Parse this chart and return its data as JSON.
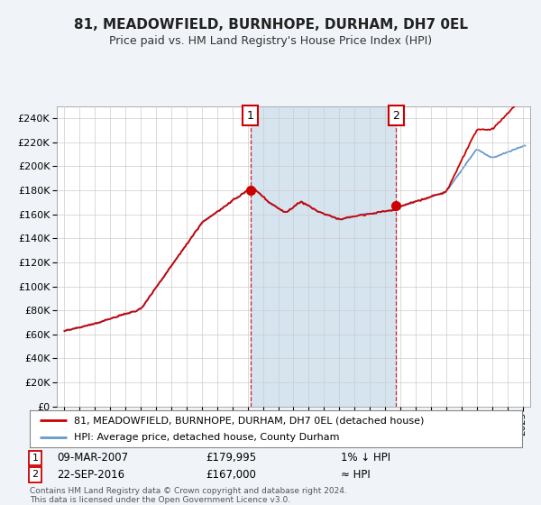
{
  "title": "81, MEADOWFIELD, BURNHOPE, DURHAM, DH7 0EL",
  "subtitle": "Price paid vs. HM Land Registry's House Price Index (HPI)",
  "legend_line1": "81, MEADOWFIELD, BURNHOPE, DURHAM, DH7 0EL (detached house)",
  "legend_line2": "HPI: Average price, detached house, County Durham",
  "annotation1_date": "09-MAR-2007",
  "annotation1_price": "£179,995",
  "annotation1_hpi": "1% ↓ HPI",
  "annotation1_year": 2007.18,
  "annotation2_date": "22-SEP-2016",
  "annotation2_price": "£167,000",
  "annotation2_hpi": "≈ HPI",
  "annotation2_year": 2016.72,
  "footer1": "Contains HM Land Registry data © Crown copyright and database right 2024.",
  "footer2": "This data is licensed under the Open Government Licence v3.0.",
  "bg_color": "#f0f4f8",
  "plot_bg": "#ffffff",
  "shade_color": "#d6e4f0",
  "hpi_color": "#6699cc",
  "price_color": "#cc0000",
  "annotation_line_color": "#cc0000",
  "ylim_min": 0,
  "ylim_max": 250000,
  "yticks": [
    0,
    20000,
    40000,
    60000,
    80000,
    100000,
    120000,
    140000,
    160000,
    180000,
    200000,
    220000,
    240000
  ],
  "xlim_min": 1994.5,
  "xlim_max": 2025.5
}
